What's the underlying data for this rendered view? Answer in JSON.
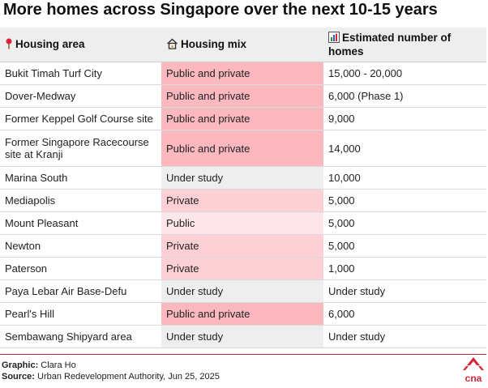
{
  "title": "More homes across Singapore over the next 10-15 years",
  "headers": {
    "area": "Housing area",
    "mix": "Housing mix",
    "estimate": "Estimated number of homes"
  },
  "icons": {
    "area": "pin-icon",
    "mix": "house-icon",
    "estimate": "bar-chart-icon"
  },
  "colors": {
    "public_and_private": "#fbb8bf",
    "private": "#fdd0d5",
    "public": "#fde6e9",
    "under_study": "#eeeeee",
    "accent": "#cc2233"
  },
  "rows": [
    {
      "area": "Bukit Timah Turf City",
      "mix": "Public and private",
      "estimate": "15,000 - 20,000"
    },
    {
      "area": "Dover-Medway",
      "mix": "Public and private",
      "estimate": "6,000 (Phase 1)"
    },
    {
      "area": "Former Keppel Golf Course site",
      "mix": "Public and private",
      "estimate": "9,000"
    },
    {
      "area": "Former Singapore Racecourse site at Kranji",
      "mix": "Public and private",
      "estimate": "14,000"
    },
    {
      "area": "Marina South",
      "mix": "Under study",
      "estimate": "10,000"
    },
    {
      "area": "Mediapolis",
      "mix": "Private",
      "estimate": "5,000"
    },
    {
      "area": "Mount Pleasant",
      "mix": "Public",
      "estimate": "5,000"
    },
    {
      "area": "Newton",
      "mix": "Private",
      "estimate": "5,000"
    },
    {
      "area": "Paterson",
      "mix": "Private",
      "estimate": "1,000"
    },
    {
      "area": "Paya Lebar Air Base-Defu",
      "mix": "Under study",
      "estimate": "Under study"
    },
    {
      "area": "Pearl's Hill",
      "mix": "Public and private",
      "estimate": "6,000"
    },
    {
      "area": "Sembawang Shipyard area",
      "mix": "Under study",
      "estimate": "Under study"
    }
  ],
  "credits": {
    "graphic_label": "Graphic:",
    "graphic_value": "Clara Ho",
    "source_label": "Source:",
    "source_value": "Urban Redevelopment Authority, Jun 25, 2025"
  },
  "logo": {
    "text": "cna",
    "icon": "cna-logo"
  }
}
